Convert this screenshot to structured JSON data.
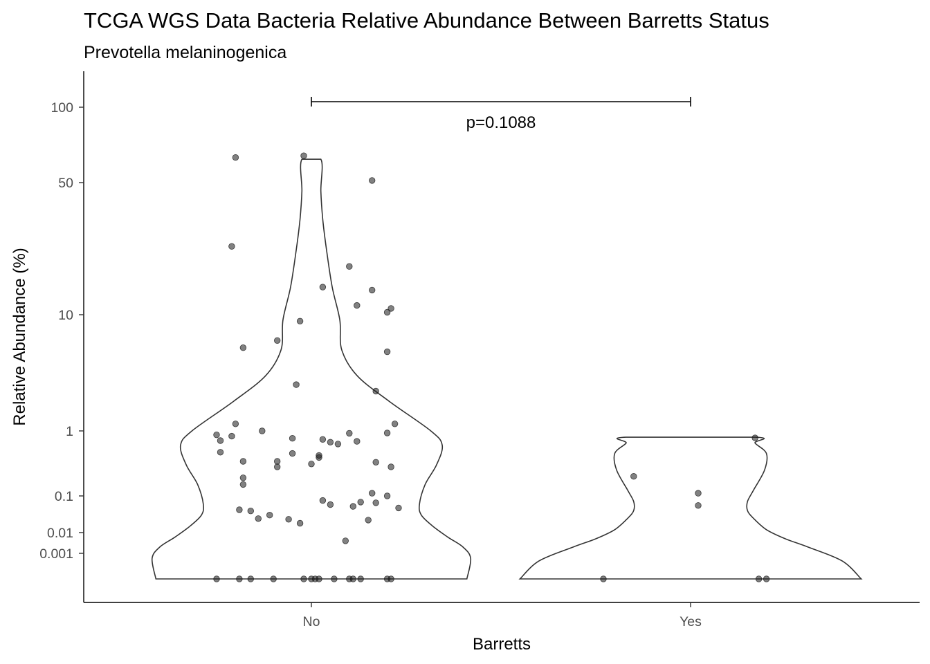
{
  "chart_data": {
    "type": "violin",
    "title": "TCGA WGS Data Bacteria Relative Abundance Between Barretts Status",
    "subtitle": "Prevotella melaninogenica",
    "xlabel": "Barretts",
    "ylabel": "Relative Abundance (%)",
    "categories": [
      "No",
      "Yes"
    ],
    "y_scale": "pseudo-log",
    "y_ticks": [
      100,
      50,
      10,
      1,
      0.1,
      0.01,
      0.001
    ],
    "y_tick_labels": [
      "100",
      "50",
      "10",
      "1",
      "0.1",
      "0.01",
      "0.001"
    ],
    "ylim": [
      0,
      200
    ],
    "grid": false,
    "legend": "none",
    "colors": {
      "points": "#1a1a1a",
      "violin_outline": "#333333",
      "axis": "#000000"
    },
    "annotations": [
      {
        "type": "bracket",
        "from": "No",
        "to": "Yes",
        "y": 110,
        "label": "p=0.1088"
      }
    ],
    "violins": [
      {
        "category": "No",
        "profile": [
          [
            0,
            0.82
          ],
          [
            0.0008,
            0.84
          ],
          [
            0.002,
            0.8
          ],
          [
            0.006,
            0.72
          ],
          [
            0.015,
            0.64
          ],
          [
            0.03,
            0.58
          ],
          [
            0.06,
            0.57
          ],
          [
            0.15,
            0.6
          ],
          [
            0.3,
            0.66
          ],
          [
            0.6,
            0.69
          ],
          [
            1,
            0.63
          ],
          [
            1.8,
            0.41
          ],
          [
            3,
            0.24
          ],
          [
            5,
            0.16
          ],
          [
            9,
            0.15
          ],
          [
            14,
            0.11
          ],
          [
            22,
            0.08
          ],
          [
            32,
            0.06
          ],
          [
            45,
            0.05
          ],
          [
            62,
            0.05
          ]
        ]
      },
      {
        "category": "Yes",
        "profile": [
          [
            0,
            0.9
          ],
          [
            0.0007,
            0.8
          ],
          [
            0.002,
            0.62
          ],
          [
            0.005,
            0.5
          ],
          [
            0.012,
            0.4
          ],
          [
            0.025,
            0.33
          ],
          [
            0.04,
            0.3
          ],
          [
            0.07,
            0.3
          ],
          [
            0.12,
            0.33
          ],
          [
            0.25,
            0.39
          ],
          [
            0.45,
            0.4
          ],
          [
            0.65,
            0.34
          ],
          [
            0.8,
            0.34
          ]
        ]
      }
    ],
    "points": [
      {
        "category": "No",
        "jitter": -0.2,
        "y": 63
      },
      {
        "category": "No",
        "jitter": -0.02,
        "y": 64
      },
      {
        "category": "No",
        "jitter": 0.16,
        "y": 51
      },
      {
        "category": "No",
        "jitter": -0.21,
        "y": 23
      },
      {
        "category": "No",
        "jitter": 0.1,
        "y": 18
      },
      {
        "category": "No",
        "jitter": 0.03,
        "y": 14
      },
      {
        "category": "No",
        "jitter": 0.16,
        "y": 13.5
      },
      {
        "category": "No",
        "jitter": 0.12,
        "y": 11.2
      },
      {
        "category": "No",
        "jitter": 0.21,
        "y": 10.8
      },
      {
        "category": "No",
        "jitter": 0.2,
        "y": 10.3
      },
      {
        "category": "No",
        "jitter": -0.03,
        "y": 8.8
      },
      {
        "category": "No",
        "jitter": -0.09,
        "y": 6
      },
      {
        "category": "No",
        "jitter": -0.18,
        "y": 5.2
      },
      {
        "category": "No",
        "jitter": 0.2,
        "y": 4.8
      },
      {
        "category": "No",
        "jitter": -0.04,
        "y": 2.5
      },
      {
        "category": "No",
        "jitter": 0.17,
        "y": 2.2
      },
      {
        "category": "No",
        "jitter": -0.2,
        "y": 1.15
      },
      {
        "category": "No",
        "jitter": 0.22,
        "y": 1.15
      },
      {
        "category": "No",
        "jitter": -0.13,
        "y": 1
      },
      {
        "category": "No",
        "jitter": 0.2,
        "y": 0.93
      },
      {
        "category": "No",
        "jitter": 0.1,
        "y": 0.92
      },
      {
        "category": "No",
        "jitter": -0.25,
        "y": 0.87
      },
      {
        "category": "No",
        "jitter": -0.21,
        "y": 0.83
      },
      {
        "category": "No",
        "jitter": -0.05,
        "y": 0.77
      },
      {
        "category": "No",
        "jitter": 0.03,
        "y": 0.74
      },
      {
        "category": "No",
        "jitter": -0.24,
        "y": 0.71
      },
      {
        "category": "No",
        "jitter": 0.12,
        "y": 0.69
      },
      {
        "category": "No",
        "jitter": 0.05,
        "y": 0.67
      },
      {
        "category": "No",
        "jitter": 0.07,
        "y": 0.63
      },
      {
        "category": "No",
        "jitter": -0.24,
        "y": 0.47
      },
      {
        "category": "No",
        "jitter": -0.05,
        "y": 0.45
      },
      {
        "category": "No",
        "jitter": 0.02,
        "y": 0.42
      },
      {
        "category": "No",
        "jitter": 0.02,
        "y": 0.39
      },
      {
        "category": "No",
        "jitter": -0.18,
        "y": 0.34
      },
      {
        "category": "No",
        "jitter": -0.09,
        "y": 0.34
      },
      {
        "category": "No",
        "jitter": 0.17,
        "y": 0.33
      },
      {
        "category": "No",
        "jitter": 0.0,
        "y": 0.31
      },
      {
        "category": "No",
        "jitter": -0.09,
        "y": 0.28
      },
      {
        "category": "No",
        "jitter": 0.21,
        "y": 0.28
      },
      {
        "category": "No",
        "jitter": -0.18,
        "y": 0.19
      },
      {
        "category": "No",
        "jitter": -0.18,
        "y": 0.15
      },
      {
        "category": "No",
        "jitter": 0.16,
        "y": 0.11
      },
      {
        "category": "No",
        "jitter": 0.2,
        "y": 0.1
      },
      {
        "category": "No",
        "jitter": 0.03,
        "y": 0.075
      },
      {
        "category": "No",
        "jitter": 0.13,
        "y": 0.068
      },
      {
        "category": "No",
        "jitter": 0.17,
        "y": 0.065
      },
      {
        "category": "No",
        "jitter": 0.05,
        "y": 0.058
      },
      {
        "category": "No",
        "jitter": 0.11,
        "y": 0.052
      },
      {
        "category": "No",
        "jitter": 0.23,
        "y": 0.047
      },
      {
        "category": "No",
        "jitter": -0.19,
        "y": 0.042
      },
      {
        "category": "No",
        "jitter": -0.16,
        "y": 0.039
      },
      {
        "category": "No",
        "jitter": -0.11,
        "y": 0.03
      },
      {
        "category": "No",
        "jitter": -0.14,
        "y": 0.024
      },
      {
        "category": "No",
        "jitter": -0.06,
        "y": 0.023
      },
      {
        "category": "No",
        "jitter": -0.03,
        "y": 0.018
      },
      {
        "category": "No",
        "jitter": 0.15,
        "y": 0.022
      },
      {
        "category": "No",
        "jitter": 0.09,
        "y": 0.004
      },
      {
        "category": "No",
        "jitter": -0.25,
        "y": 0
      },
      {
        "category": "No",
        "jitter": -0.19,
        "y": 0
      },
      {
        "category": "No",
        "jitter": -0.16,
        "y": 0
      },
      {
        "category": "No",
        "jitter": -0.1,
        "y": 0
      },
      {
        "category": "No",
        "jitter": -0.02,
        "y": 0
      },
      {
        "category": "No",
        "jitter": 0.0,
        "y": 0
      },
      {
        "category": "No",
        "jitter": 0.01,
        "y": 0
      },
      {
        "category": "No",
        "jitter": 0.02,
        "y": 0
      },
      {
        "category": "No",
        "jitter": 0.06,
        "y": 0
      },
      {
        "category": "No",
        "jitter": 0.1,
        "y": 0
      },
      {
        "category": "No",
        "jitter": 0.11,
        "y": 0
      },
      {
        "category": "No",
        "jitter": 0.13,
        "y": 0
      },
      {
        "category": "No",
        "jitter": 0.2,
        "y": 0
      },
      {
        "category": "No",
        "jitter": 0.21,
        "y": 0
      },
      {
        "category": "Yes",
        "jitter": 0.17,
        "y": 0.78
      },
      {
        "category": "Yes",
        "jitter": -0.15,
        "y": 0.2
      },
      {
        "category": "Yes",
        "jitter": 0.02,
        "y": 0.11
      },
      {
        "category": "Yes",
        "jitter": 0.02,
        "y": 0.055
      },
      {
        "category": "Yes",
        "jitter": -0.23,
        "y": 0
      },
      {
        "category": "Yes",
        "jitter": 0.18,
        "y": 0
      },
      {
        "category": "Yes",
        "jitter": 0.2,
        "y": 0
      }
    ]
  }
}
